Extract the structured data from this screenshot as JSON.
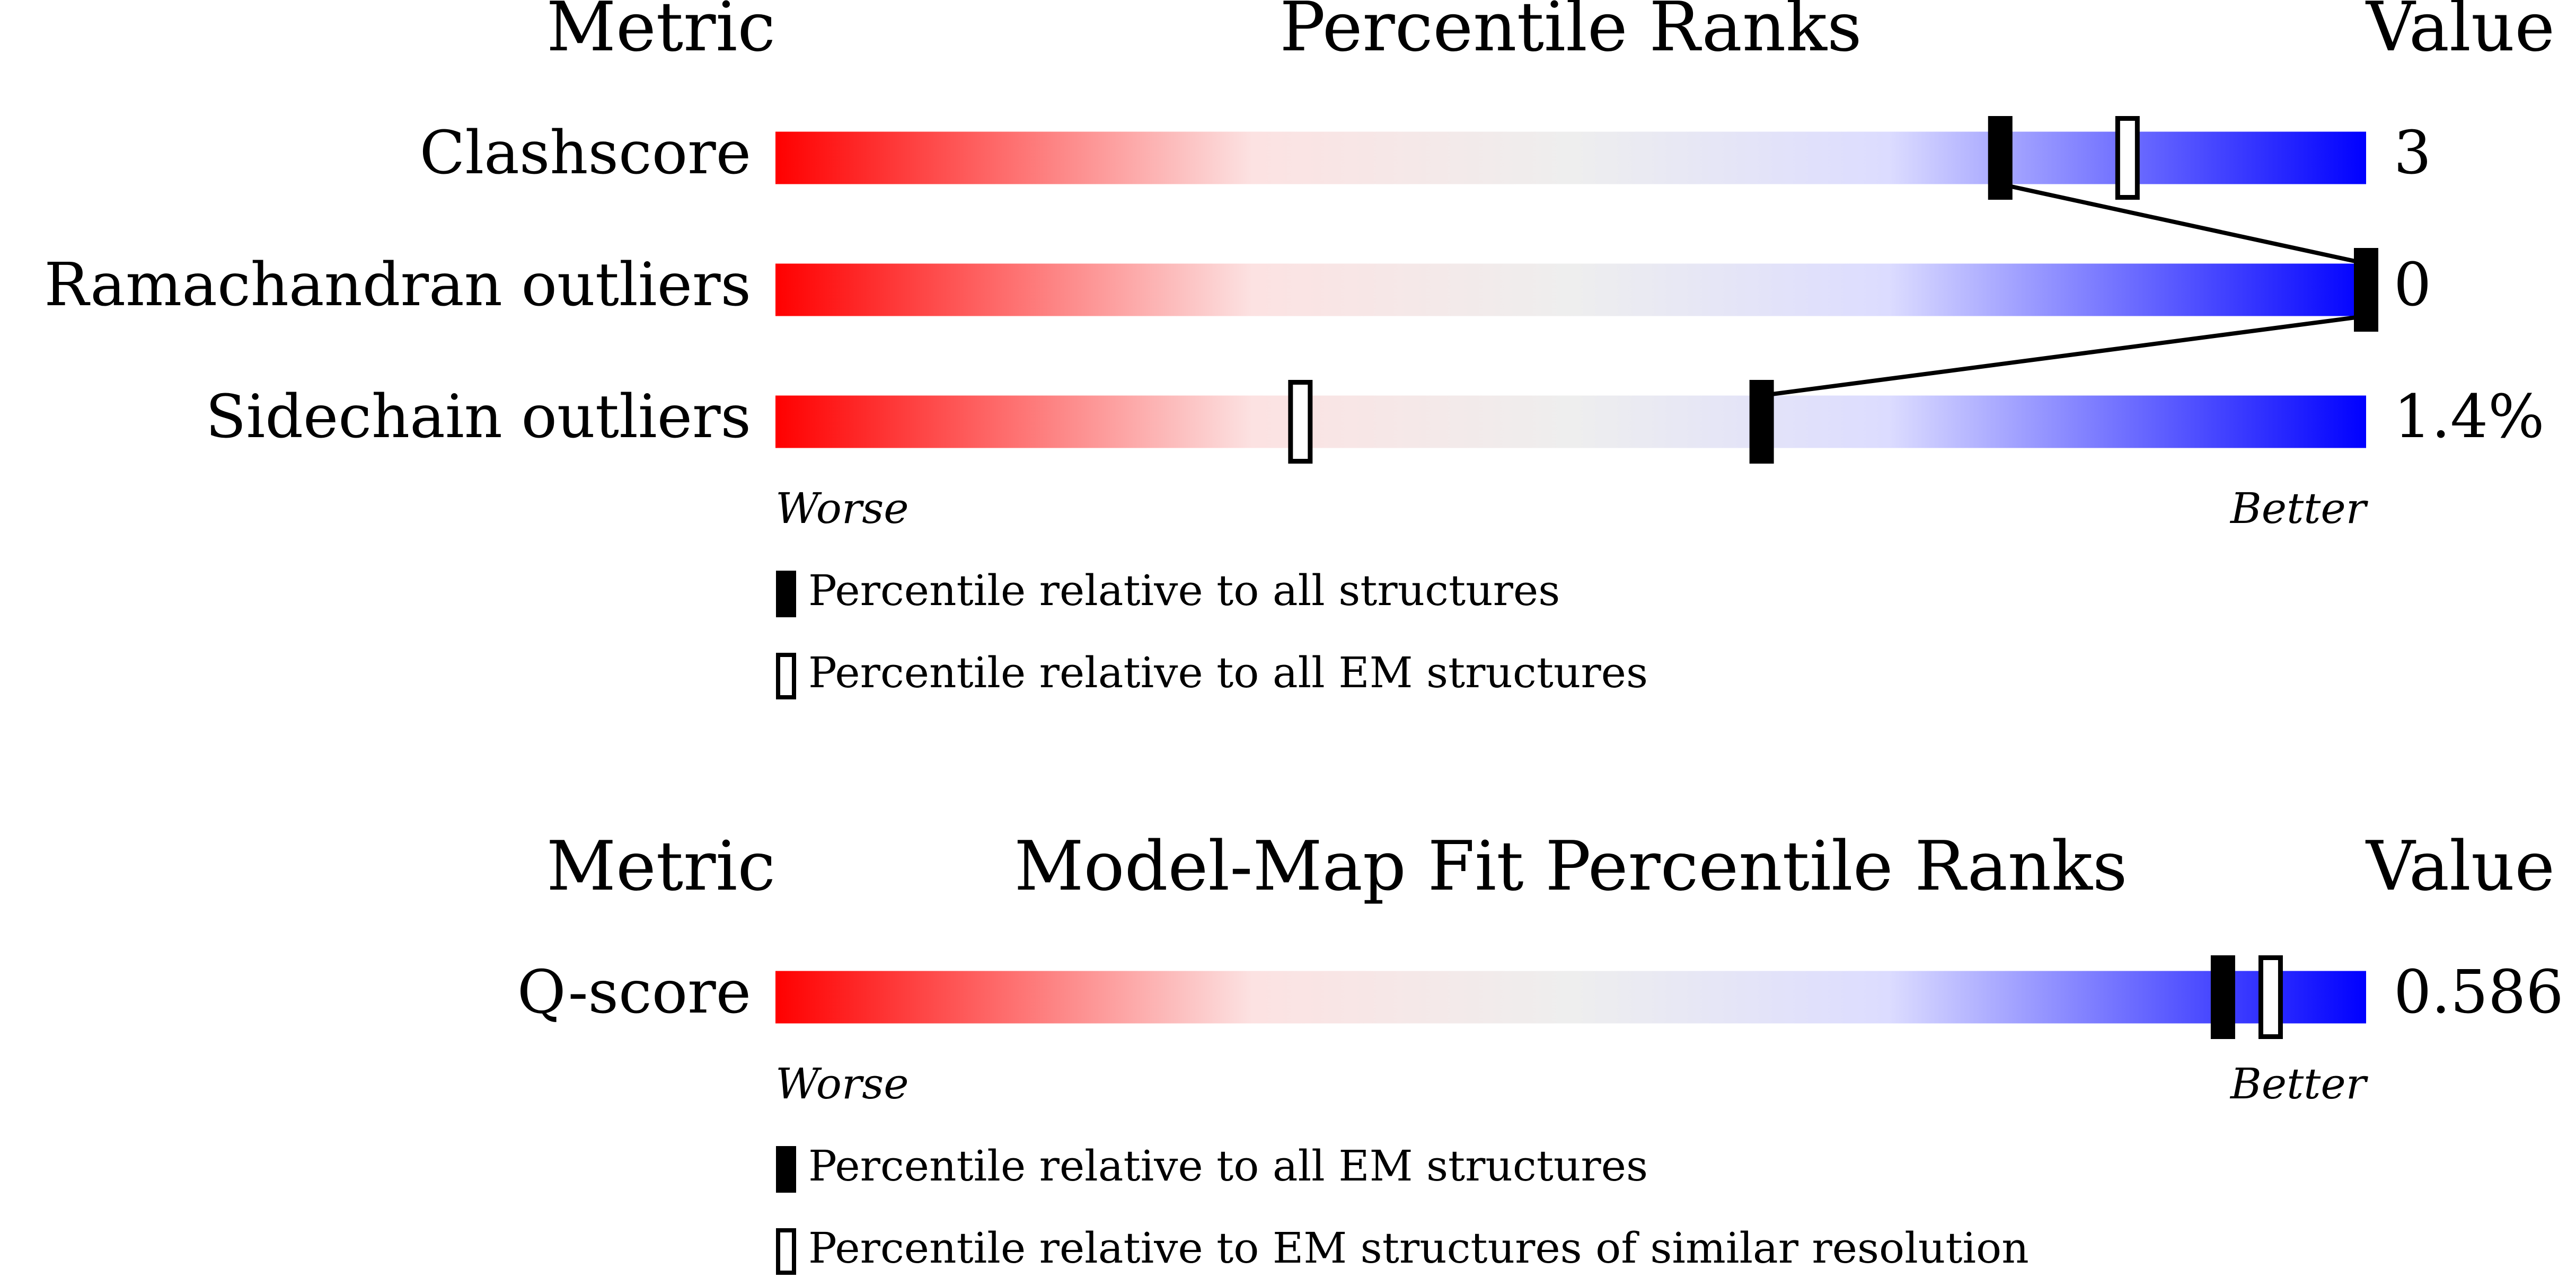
{
  "chart_data": [
    {
      "type": "percentile-slider",
      "metric_header": "Metric",
      "title": "Percentile Ranks",
      "value_header": "Value",
      "categories": [
        "Clashscore",
        "Ramachandran outliers",
        "Sidechain outliers"
      ],
      "metric_values": [
        "3",
        "0",
        "1.4%"
      ],
      "xlim": [
        0,
        100
      ],
      "low_label": "Worse",
      "high_label": "Better",
      "series": [
        {
          "name": "Percentile relative to all structures",
          "color": "#000000",
          "fill": "#000000",
          "connect": true,
          "values": [
            77,
            100,
            62
          ]
        },
        {
          "name": "Percentile relative to all EM structures",
          "color": "#000000",
          "fill": "#ffffff",
          "connect": false,
          "values": [
            85,
            null,
            33
          ]
        }
      ]
    },
    {
      "type": "percentile-slider",
      "metric_header": "Metric",
      "title": "Model-Map Fit Percentile Ranks",
      "value_header": "Value",
      "categories": [
        "Q-score"
      ],
      "metric_values": [
        "0.586"
      ],
      "xlim": [
        0,
        100
      ],
      "low_label": "Worse",
      "high_label": "Better",
      "series": [
        {
          "name": "Percentile relative to all EM structures",
          "color": "#000000",
          "fill": "#000000",
          "connect": true,
          "values": [
            91
          ]
        },
        {
          "name": "Percentile relative to EM structures of similar resolution",
          "color": "#000000",
          "fill": "#ffffff",
          "connect": false,
          "values": [
            94
          ]
        }
      ]
    }
  ]
}
